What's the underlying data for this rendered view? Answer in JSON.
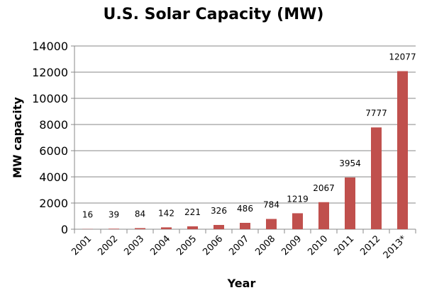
{
  "chart_data": {
    "type": "bar",
    "title": "U.S. Solar Capacity (MW)",
    "xlabel": "Year",
    "ylabel": "MW capacity",
    "categories": [
      "2001",
      "2002",
      "2003",
      "2004",
      "2005",
      "2006",
      "2007",
      "2008",
      "2009",
      "2010",
      "2011",
      "2012",
      "2013*"
    ],
    "values": [
      16,
      39,
      84,
      142,
      221,
      326,
      486,
      784,
      1219,
      2067,
      3954,
      7777,
      12077
    ],
    "data_labels": [
      "16",
      "39",
      "84",
      "142",
      "221",
      "326",
      "486",
      "784",
      "1219",
      "2067",
      "3954",
      "7777",
      "12077"
    ],
    "ylim": [
      0,
      14000
    ],
    "yticks": [
      "0",
      "2000",
      "4000",
      "6000",
      "8000",
      "10000",
      "12000",
      "14000"
    ],
    "grid": true,
    "legend": "none",
    "bar_color": "#C0504D"
  }
}
